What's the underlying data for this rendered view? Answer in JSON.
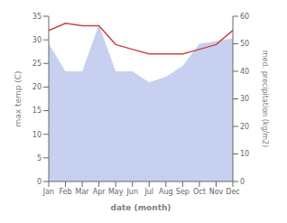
{
  "chart_data": {
    "type": "line",
    "xlabel": "date (month)",
    "ylabel": "max temp (C)",
    "y2label": "med. precipitation (kg/m2)",
    "categories": [
      "Jan",
      "Feb",
      "Mar",
      "Apr",
      "May",
      "Jun",
      "Jul",
      "Aug",
      "Sep",
      "Oct",
      "Nov",
      "Dec"
    ],
    "series": [
      {
        "type": "area",
        "axis": "y2",
        "color": "#c8d0f0",
        "values": [
          50,
          40,
          40,
          57,
          40,
          40,
          36,
          38,
          42,
          50,
          51,
          52
        ]
      },
      {
        "type": "line",
        "color": "#cc4444",
        "values": [
          32.0,
          33.5,
          33.0,
          33.0,
          29.0,
          28.0,
          27.0,
          27.0,
          27.0,
          28.0,
          29.0,
          32.0
        ]
      }
    ],
    "ylim": [
      0,
      35
    ],
    "yticks": [
      0,
      5,
      10,
      15,
      20,
      25,
      30,
      35
    ],
    "y2lim": [
      0,
      60
    ],
    "y2ticks": [
      0,
      10,
      20,
      30,
      40,
      50,
      60
    ],
    "grid": false
  }
}
